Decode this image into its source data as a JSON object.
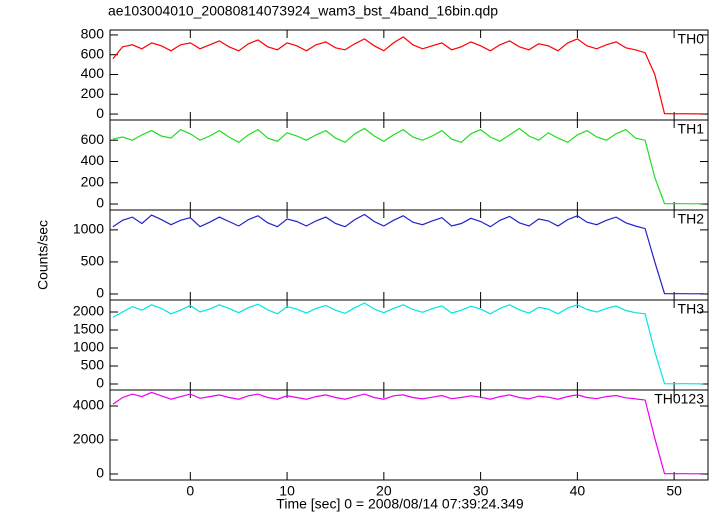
{
  "title": "ae103004010_20080814073924_wam3_bst_4band_16bin.qdp",
  "ylabel": "Counts/sec",
  "xlabel": "Time [sec] 0 = 2008/08/14 07:39:24.349",
  "chart_data": [
    {
      "type": "line",
      "xlim": [
        -8.3,
        53.5
      ],
      "xticks": [
        0,
        10,
        20,
        30,
        40,
        50
      ],
      "ylim": [
        -60,
        850
      ],
      "yticks": [
        0,
        200,
        400,
        600,
        800
      ],
      "x": [
        -8,
        -7,
        -6,
        -5,
        -4,
        -3,
        -2,
        -1,
        0,
        1,
        2,
        3,
        4,
        5,
        6,
        7,
        8,
        9,
        10,
        11,
        12,
        13,
        14,
        15,
        16,
        17,
        18,
        19,
        20,
        21,
        22,
        23,
        24,
        25,
        26,
        27,
        28,
        29,
        30,
        31,
        32,
        33,
        34,
        35,
        36,
        37,
        38,
        39,
        40,
        41,
        42,
        43,
        44,
        45,
        46,
        47,
        48,
        49,
        50,
        51,
        52,
        53
      ],
      "series": [
        {
          "name": "TH0",
          "color": "#ff0000",
          "values": [
            560,
            680,
            700,
            660,
            720,
            690,
            640,
            700,
            720,
            660,
            700,
            740,
            680,
            640,
            710,
            750,
            680,
            650,
            720,
            690,
            640,
            700,
            730,
            670,
            650,
            710,
            760,
            690,
            640,
            720,
            780,
            700,
            660,
            690,
            720,
            650,
            680,
            730,
            690,
            640,
            700,
            740,
            680,
            650,
            710,
            690,
            640,
            720,
            760,
            690,
            660,
            700,
            730,
            670,
            650,
            620,
            400,
            5,
            3,
            4,
            2,
            3
          ]
        }
      ]
    },
    {
      "type": "line",
      "xlim": [
        -8.3,
        53.5
      ],
      "xticks": [
        0,
        10,
        20,
        30,
        40,
        50
      ],
      "ylim": [
        -56,
        790
      ],
      "yticks": [
        0,
        200,
        400,
        600
      ],
      "x": [
        -8,
        -7,
        -6,
        -5,
        -4,
        -3,
        -2,
        -1,
        0,
        1,
        2,
        3,
        4,
        5,
        6,
        7,
        8,
        9,
        10,
        11,
        12,
        13,
        14,
        15,
        16,
        17,
        18,
        19,
        20,
        21,
        22,
        23,
        24,
        25,
        26,
        27,
        28,
        29,
        30,
        31,
        32,
        33,
        34,
        35,
        36,
        37,
        38,
        39,
        40,
        41,
        42,
        43,
        44,
        45,
        46,
        47,
        48,
        49,
        50,
        51,
        52,
        53
      ],
      "series": [
        {
          "name": "TH1",
          "color": "#22dd22",
          "values": [
            610,
            630,
            600,
            650,
            690,
            640,
            620,
            700,
            660,
            600,
            640,
            690,
            630,
            580,
            650,
            700,
            620,
            590,
            670,
            640,
            600,
            650,
            690,
            620,
            580,
            660,
            710,
            640,
            590,
            650,
            700,
            630,
            600,
            640,
            690,
            610,
            580,
            660,
            700,
            630,
            590,
            650,
            710,
            640,
            600,
            670,
            620,
            580,
            650,
            690,
            630,
            600,
            660,
            700,
            620,
            600,
            250,
            4,
            3,
            3,
            2,
            3
          ]
        }
      ]
    },
    {
      "type": "line",
      "xlim": [
        -8.3,
        53.5
      ],
      "xticks": [
        0,
        10,
        20,
        30,
        40,
        50
      ],
      "ylim": [
        -94,
        1310
      ],
      "yticks": [
        0,
        500,
        1000
      ],
      "x": [
        -8,
        -7,
        -6,
        -5,
        -4,
        -3,
        -2,
        -1,
        0,
        1,
        2,
        3,
        4,
        5,
        6,
        7,
        8,
        9,
        10,
        11,
        12,
        13,
        14,
        15,
        16,
        17,
        18,
        19,
        20,
        21,
        22,
        23,
        24,
        25,
        26,
        27,
        28,
        29,
        30,
        31,
        32,
        33,
        34,
        35,
        36,
        37,
        38,
        39,
        40,
        41,
        42,
        43,
        44,
        45,
        46,
        47,
        48,
        49,
        50,
        51,
        52,
        53
      ],
      "series": [
        {
          "name": "TH2",
          "color": "#2222cc",
          "values": [
            1050,
            1150,
            1200,
            1100,
            1230,
            1160,
            1080,
            1150,
            1190,
            1050,
            1120,
            1200,
            1130,
            1060,
            1160,
            1220,
            1110,
            1050,
            1170,
            1130,
            1060,
            1140,
            1200,
            1100,
            1050,
            1160,
            1240,
            1130,
            1060,
            1150,
            1220,
            1120,
            1080,
            1140,
            1190,
            1060,
            1100,
            1180,
            1130,
            1050,
            1150,
            1210,
            1110,
            1060,
            1170,
            1140,
            1060,
            1160,
            1220,
            1120,
            1080,
            1150,
            1200,
            1110,
            1060,
            1020,
            500,
            6,
            4,
            5,
            3,
            4
          ]
        }
      ]
    },
    {
      "type": "line",
      "xlim": [
        -8.3,
        53.5
      ],
      "xticks": [
        0,
        10,
        20,
        30,
        40,
        50
      ],
      "ylim": [
        -167,
        2333
      ],
      "yticks": [
        0,
        500,
        1000,
        1500,
        2000
      ],
      "x": [
        -8,
        -7,
        -6,
        -5,
        -4,
        -3,
        -2,
        -1,
        0,
        1,
        2,
        3,
        4,
        5,
        6,
        7,
        8,
        9,
        10,
        11,
        12,
        13,
        14,
        15,
        16,
        17,
        18,
        19,
        20,
        21,
        22,
        23,
        24,
        25,
        26,
        27,
        28,
        29,
        30,
        31,
        32,
        33,
        34,
        35,
        36,
        37,
        38,
        39,
        40,
        41,
        42,
        43,
        44,
        45,
        46,
        47,
        48,
        49,
        50,
        51,
        52,
        53
      ],
      "series": [
        {
          "name": "TH3",
          "color": "#00e5e5",
          "values": [
            1850,
            2000,
            2150,
            2050,
            2200,
            2100,
            1950,
            2050,
            2180,
            2000,
            2080,
            2200,
            2100,
            1980,
            2120,
            2220,
            2060,
            1950,
            2150,
            2080,
            1970,
            2100,
            2180,
            2050,
            1960,
            2120,
            2250,
            2080,
            1980,
            2100,
            2200,
            2070,
            1990,
            2090,
            2170,
            1970,
            2050,
            2160,
            2080,
            1950,
            2100,
            2200,
            2060,
            1970,
            2130,
            2080,
            1950,
            2110,
            2200,
            2070,
            2000,
            2100,
            2170,
            2040,
            1980,
            1950,
            900,
            8,
            6,
            7,
            5,
            6
          ]
        }
      ]
    },
    {
      "type": "line",
      "xlim": [
        -8.3,
        53.5
      ],
      "xticks": [
        0,
        10,
        20,
        30,
        40,
        50
      ],
      "ylim": [
        -353,
        4941
      ],
      "yticks": [
        0,
        2000,
        4000
      ],
      "x": [
        -8,
        -7,
        -6,
        -5,
        -4,
        -3,
        -2,
        -1,
        0,
        1,
        2,
        3,
        4,
        5,
        6,
        7,
        8,
        9,
        10,
        11,
        12,
        13,
        14,
        15,
        16,
        17,
        18,
        19,
        20,
        21,
        22,
        23,
        24,
        25,
        26,
        27,
        28,
        29,
        30,
        31,
        32,
        33,
        34,
        35,
        36,
        37,
        38,
        39,
        40,
        41,
        42,
        43,
        44,
        45,
        46,
        47,
        48,
        49,
        50,
        51,
        52,
        53
      ],
      "series": [
        {
          "name": "TH0123",
          "color": "#ee00ee",
          "values": [
            4100,
            4500,
            4700,
            4550,
            4800,
            4600,
            4400,
            4550,
            4700,
            4450,
            4550,
            4650,
            4500,
            4400,
            4600,
            4700,
            4500,
            4400,
            4600,
            4500,
            4400,
            4550,
            4650,
            4500,
            4400,
            4550,
            4700,
            4500,
            4400,
            4600,
            4650,
            4500,
            4420,
            4520,
            4620,
            4430,
            4500,
            4600,
            4520,
            4400,
            4550,
            4650,
            4500,
            4420,
            4580,
            4520,
            4400,
            4560,
            4650,
            4500,
            4430,
            4550,
            4620,
            4480,
            4420,
            4350,
            2100,
            20,
            15,
            18,
            12,
            15
          ]
        }
      ]
    }
  ]
}
